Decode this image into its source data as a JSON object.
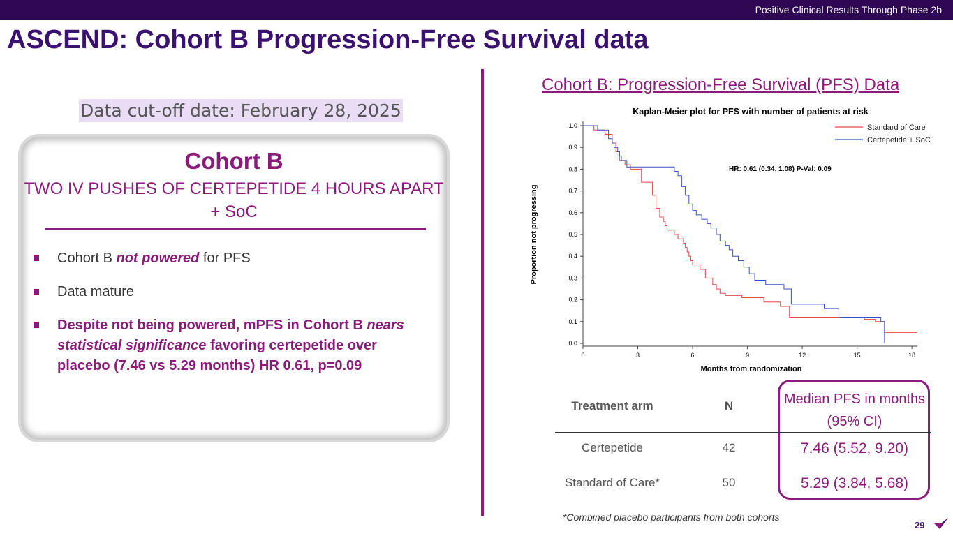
{
  "header": {
    "banner": "Positive Clinical Results Through Phase 2b",
    "title": "ASCEND: Cohort B Progression-Free Survival data"
  },
  "left": {
    "cutoff": "Data cut-off date: February 28, 2025",
    "card": {
      "title": "Cohort B",
      "subtitle": "TWO IV PUSHES OF CERTEPETIDE 4 HOURS APART + SoC",
      "bullet1": {
        "pre": "Cohort B ",
        "emph": "not powered",
        "post": " for PFS"
      },
      "bullet2": "Data mature",
      "bullet3": {
        "pre": "Despite not being powered, mPFS in Cohort B ",
        "emph": "nears statistical significance",
        "post": " favoring certepetide over placebo (7.46 vs 5.29 months) HR 0.61, p=0.09"
      }
    }
  },
  "right": {
    "heading": "Cohort B: Progression-Free Survival (PFS) Data",
    "table": {
      "headers": {
        "arm": "Treatment arm",
        "n": "N",
        "median": "Median PFS in months (95% CI)"
      },
      "rows": [
        {
          "arm": "Certepetide",
          "n": "42",
          "median": "7.46 (5.52, 9.20)"
        },
        {
          "arm": "Standard of Care*",
          "n": "50",
          "median": "5.29 (3.84, 5.68)"
        }
      ]
    },
    "footnote": "*Combined placebo participants from both cohorts"
  },
  "page_number": "29",
  "colors": {
    "brand_dark": "#2e0854",
    "accent": "#8b1a7a",
    "soc_line": "#e8474a",
    "cert_line": "#3a4fc4"
  },
  "chart_data": {
    "type": "line",
    "title": "Kaplan-Meier plot for PFS with number of patients at risk",
    "xlabel": "Months from randomization",
    "ylabel": "Proportion not progressing",
    "xlim": [
      0,
      18.3
    ],
    "ylim": [
      0,
      1.0
    ],
    "xticks": [
      "0",
      "3",
      "6",
      "9",
      "12",
      "15",
      "18"
    ],
    "yticks": [
      "0.0",
      "0.1",
      "0.2",
      "0.3",
      "0.4",
      "0.5",
      "0.6",
      "0.7",
      "0.8",
      "0.9",
      "1.0"
    ],
    "annotation": "HR: 0.61 (0.34, 1.08)   P-Val: 0.09",
    "legend_position": "top-right",
    "series": [
      {
        "name": "Standard of Care",
        "color": "#e8474a",
        "x": [
          0,
          0.6,
          1.2,
          1.6,
          1.8,
          2.0,
          2.3,
          2.6,
          3.2,
          3.8,
          4.0,
          4.2,
          4.4,
          4.5,
          4.6,
          5.0,
          5.2,
          5.5,
          5.6,
          5.7,
          5.8,
          5.9,
          6.0,
          6.4,
          6.7,
          7.1,
          7.3,
          7.5,
          7.8,
          8.7,
          9.9,
          10.8,
          11.3,
          15.4,
          16.0,
          16.5,
          18.5
        ],
        "y": [
          1.0,
          0.98,
          0.96,
          0.92,
          0.88,
          0.84,
          0.82,
          0.8,
          0.74,
          0.68,
          0.62,
          0.58,
          0.56,
          0.54,
          0.52,
          0.5,
          0.48,
          0.46,
          0.44,
          0.42,
          0.4,
          0.38,
          0.36,
          0.34,
          0.3,
          0.27,
          0.25,
          0.23,
          0.22,
          0.21,
          0.19,
          0.17,
          0.12,
          0.11,
          0.1,
          0.05,
          0.05
        ]
      },
      {
        "name": "Certepetide + SoC",
        "color": "#3a4fc4",
        "x": [
          0,
          0.8,
          1.4,
          1.6,
          1.7,
          1.9,
          2.0,
          2.1,
          2.4,
          4.8,
          5.0,
          5.2,
          5.4,
          5.6,
          5.8,
          6.0,
          6.2,
          6.5,
          6.8,
          7.0,
          7.3,
          7.5,
          7.8,
          8.0,
          8.2,
          8.5,
          8.8,
          9.1,
          9.4,
          10.0,
          11.0,
          11.4,
          13.2,
          14.0,
          16.3,
          16.5
        ],
        "y": [
          1.0,
          0.98,
          0.94,
          0.92,
          0.9,
          0.88,
          0.86,
          0.84,
          0.81,
          0.81,
          0.79,
          0.77,
          0.72,
          0.68,
          0.64,
          0.61,
          0.59,
          0.57,
          0.55,
          0.53,
          0.5,
          0.47,
          0.45,
          0.43,
          0.4,
          0.38,
          0.35,
          0.32,
          0.29,
          0.27,
          0.25,
          0.18,
          0.16,
          0.12,
          0.1,
          0.0
        ]
      }
    ]
  }
}
